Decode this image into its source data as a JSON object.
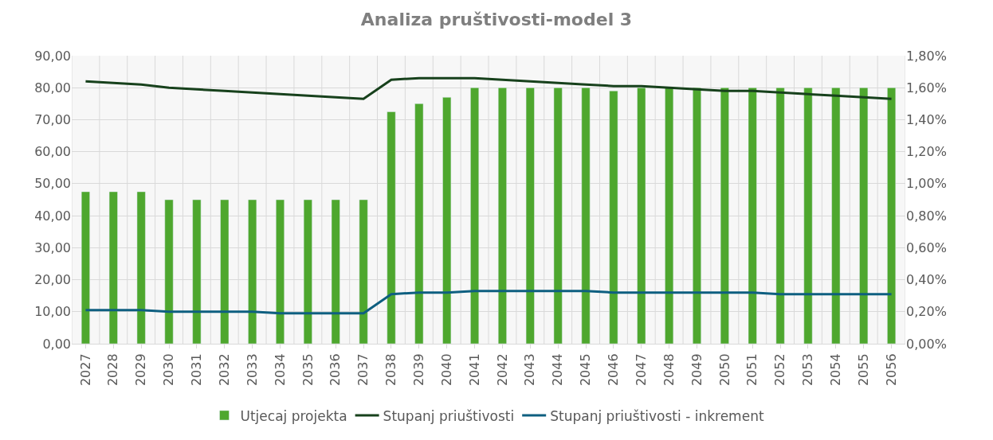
{
  "chart_data": {
    "type": "bar",
    "title": "Analiza pruštivosti-model 3",
    "categories": [
      "2027",
      "2028",
      "2029",
      "2030",
      "2031",
      "2032",
      "2033",
      "2034",
      "2035",
      "2036",
      "2037",
      "2038",
      "2039",
      "2040",
      "2041",
      "2042",
      "2043",
      "2044",
      "2045",
      "2046",
      "2047",
      "2048",
      "2049",
      "2050",
      "2051",
      "2052",
      "2053",
      "2054",
      "2055",
      "2056"
    ],
    "series": [
      {
        "name": "Utjecaj projekta",
        "color": "#4ea72e",
        "values": [
          47.5,
          47.5,
          47.5,
          45,
          45,
          45,
          45,
          45,
          45,
          45,
          45,
          72.5,
          75,
          77,
          80,
          80,
          80,
          80,
          80,
          79,
          80,
          80,
          80,
          80,
          80,
          80,
          80,
          80,
          80,
          80
        ]
      },
      {
        "name": "Stupanj priuštivosti",
        "type": "line",
        "axis": "y2",
        "color": "#17411c",
        "values": [
          1.64,
          1.63,
          1.62,
          1.6,
          1.59,
          1.58,
          1.57,
          1.56,
          1.55,
          1.54,
          1.53,
          1.65,
          1.66,
          1.66,
          1.66,
          1.65,
          1.64,
          1.63,
          1.62,
          1.61,
          1.61,
          1.6,
          1.59,
          1.58,
          1.58,
          1.57,
          1.56,
          1.55,
          1.54,
          1.53
        ]
      },
      {
        "name": "Stupanj priuštivosti - inkrement",
        "type": "line",
        "axis": "y2",
        "color": "#0e5f80",
        "values": [
          0.21,
          0.21,
          0.21,
          0.2,
          0.2,
          0.2,
          0.2,
          0.19,
          0.19,
          0.19,
          0.19,
          0.31,
          0.32,
          0.32,
          0.33,
          0.33,
          0.33,
          0.33,
          0.33,
          0.32,
          0.32,
          0.32,
          0.32,
          0.32,
          0.32,
          0.31,
          0.31,
          0.31,
          0.31,
          0.31
        ]
      }
    ],
    "ylim": [
      0,
      90
    ],
    "yticks": [
      {
        "value": 0,
        "label": "0,00"
      },
      {
        "value": 10,
        "label": "10,00"
      },
      {
        "value": 20,
        "label": "20,00"
      },
      {
        "value": 30,
        "label": "30,00"
      },
      {
        "value": 40,
        "label": "40,00"
      },
      {
        "value": 50,
        "label": "50,00"
      },
      {
        "value": 60,
        "label": "60,00"
      },
      {
        "value": 70,
        "label": "70,00"
      },
      {
        "value": 80,
        "label": "80,00"
      },
      {
        "value": 90,
        "label": "90,00"
      }
    ],
    "y2lim": [
      0,
      1.8
    ],
    "y2ticks": [
      {
        "value": 0,
        "label": "0,00%"
      },
      {
        "value": 0.2,
        "label": "0,20%"
      },
      {
        "value": 0.4,
        "label": "0,40%"
      },
      {
        "value": 0.6,
        "label": "0,60%"
      },
      {
        "value": 0.8,
        "label": "0,80%"
      },
      {
        "value": 1.0,
        "label": "1,00%"
      },
      {
        "value": 1.2,
        "label": "1,20%"
      },
      {
        "value": 1.4,
        "label": "1,40%"
      },
      {
        "value": 1.6,
        "label": "1,60%"
      },
      {
        "value": 1.8,
        "label": "1,80%"
      }
    ],
    "grid": true,
    "legend": "bottom",
    "marker": "none",
    "line_style": "solid"
  }
}
